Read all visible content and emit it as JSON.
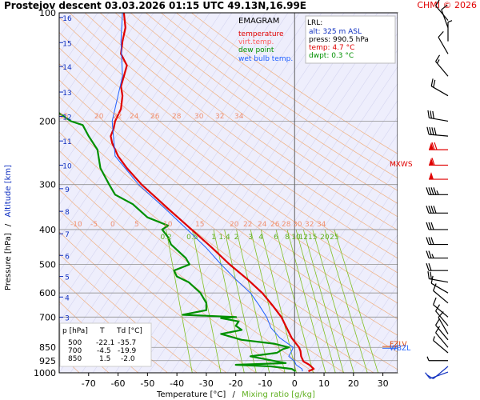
{
  "header": {
    "title": "Prostejov   descent   03.03.2026 01:15 UTC  49.13N,16.99E",
    "credit": "CHMI © 2026"
  },
  "legend": {
    "heading": "EMAGRAM",
    "items": [
      {
        "label": "temperature",
        "color": "#e00000"
      },
      {
        "label": "virt.temp.",
        "color": "#ff6060"
      },
      {
        "label": "dew point",
        "color": "#009000"
      },
      {
        "label": "wet bulb temp.",
        "color": "#2060ff"
      }
    ]
  },
  "lrl": {
    "heading": "LRL:",
    "lines": [
      {
        "text": "alt: 325 m ASL",
        "color": "#1030c0"
      },
      {
        "text": "press: 990.5 hPa",
        "color": "#000000"
      },
      {
        "text": "temp: 4.7 °C",
        "color": "#e00000"
      },
      {
        "text": "dwpt: 0.3 °C",
        "color": "#009000"
      }
    ]
  },
  "table": {
    "headers": [
      "p [hPa]",
      "T",
      "Td [°C]"
    ],
    "rows": [
      [
        "500",
        "-22.1",
        "-35.7"
      ],
      [
        "700",
        "-4.5",
        "-19.9"
      ],
      [
        "850",
        "1.5",
        "-2.0"
      ]
    ]
  },
  "axes": {
    "xlabel_temperature": "Temperature [°C]",
    "xlabel_separator": "/",
    "xlabel_mixing": "Mixing ratio [g/kg]",
    "ylabel_pressure": "Pressure [hPa]",
    "ylabel_separator": "/",
    "ylabel_altitude": "Altitude [km]"
  },
  "markers": {
    "mxws": "MXWS",
    "fzlv": "FZLV",
    "wbzl": "WBZL"
  },
  "colors": {
    "temperature": "#e00000",
    "dewpoint": "#009000",
    "wetbulb": "#2060ff",
    "dry_adiabat": "#f0b080",
    "mixing_ratio": "#80c020",
    "isotherm": "#c8c8e8",
    "background": "#eeeefc",
    "altitude_label": "#1030c0"
  },
  "chart_data": {
    "type": "line",
    "xlim": [
      -80,
      35
    ],
    "ylim": [
      1000,
      100
    ],
    "y_scale": "log",
    "x_ticks": [
      -70,
      -60,
      -50,
      -40,
      -30,
      -20,
      -10,
      0,
      10,
      20,
      30
    ],
    "pressure_ticks": [
      100,
      200,
      300,
      400,
      500,
      600,
      700,
      850,
      925,
      1000
    ],
    "altitude_ticks_km": [
      {
        "km": "1",
        "p": 900
      },
      {
        "km": "2",
        "p": 795
      },
      {
        "km": "3",
        "p": 701
      },
      {
        "km": "4",
        "p": 616
      },
      {
        "km": "5",
        "p": 540
      },
      {
        "km": "6",
        "p": 472
      },
      {
        "km": "7",
        "p": 411
      },
      {
        "km": "8",
        "p": 356
      },
      {
        "km": "9",
        "p": 308
      },
      {
        "km": "10",
        "p": 265
      },
      {
        "km": "11",
        "p": 227
      },
      {
        "km": "12",
        "p": 194
      },
      {
        "km": "13",
        "p": 166
      },
      {
        "km": "14",
        "p": 141
      },
      {
        "km": "15",
        "p": 121
      },
      {
        "km": "16",
        "p": 103
      }
    ],
    "mixing_ratio_labels": [
      "0.2",
      "0.5",
      "1",
      "1.4",
      "2",
      "3",
      "4",
      "6",
      "8",
      "10",
      "12",
      "15",
      "20",
      "25"
    ],
    "mixing_ratio_values": [
      0.2,
      0.5,
      1,
      1.4,
      2,
      3,
      4,
      6,
      8,
      10,
      12,
      15,
      20,
      25
    ],
    "theta_labels_upper": [
      "15",
      "20",
      "22",
      "24",
      "26",
      "28",
      "30",
      "32",
      "34"
    ],
    "theta_labels_lower": [
      "-10",
      "-5",
      "0",
      "5",
      "10",
      "15",
      "20",
      "22",
      "24",
      "26",
      "28",
      "30",
      "32",
      "34"
    ],
    "series": [
      {
        "name": "temperature",
        "points": [
          [
            990.5,
            4.7
          ],
          [
            975,
            6.5
          ],
          [
            950,
            5.0
          ],
          [
            930,
            3.0
          ],
          [
            900,
            2.2
          ],
          [
            870,
            2.0
          ],
          [
            850,
            1.5
          ],
          [
            800,
            -1.0
          ],
          [
            750,
            -2.7
          ],
          [
            700,
            -4.5
          ],
          [
            650,
            -7.5
          ],
          [
            600,
            -11.0
          ],
          [
            550,
            -16.0
          ],
          [
            500,
            -22.1
          ],
          [
            450,
            -28.0
          ],
          [
            400,
            -35.0
          ],
          [
            350,
            -43.0
          ],
          [
            300,
            -52.0
          ],
          [
            270,
            -57.0
          ],
          [
            250,
            -60.0
          ],
          [
            230,
            -62.0
          ],
          [
            220,
            -62.5
          ],
          [
            210,
            -61.5
          ],
          [
            200,
            -61.0
          ],
          [
            185,
            -59.0
          ],
          [
            170,
            -58.5
          ],
          [
            160,
            -59.0
          ],
          [
            150,
            -58.0
          ],
          [
            140,
            -57.0
          ],
          [
            130,
            -59.0
          ],
          [
            120,
            -58.5
          ],
          [
            110,
            -57.5
          ],
          [
            100,
            -58.0
          ]
        ]
      },
      {
        "name": "dew point",
        "points": [
          [
            990.5,
            0.3
          ],
          [
            975,
            -1.0
          ],
          [
            960,
            -8.0
          ],
          [
            950,
            -20.0
          ],
          [
            940,
            -3.0
          ],
          [
            930,
            -6.0
          ],
          [
            900,
            -15.0
          ],
          [
            880,
            -6.0
          ],
          [
            860,
            -4.0
          ],
          [
            850,
            -2.0
          ],
          [
            830,
            -7.0
          ],
          [
            810,
            -18.0
          ],
          [
            780,
            -25.0
          ],
          [
            760,
            -18.0
          ],
          [
            740,
            -20.0
          ],
          [
            720,
            -19.0
          ],
          [
            705,
            -25.0
          ],
          [
            700,
            -19.9
          ],
          [
            690,
            -38.0
          ],
          [
            670,
            -30.0
          ],
          [
            640,
            -30.0
          ],
          [
            600,
            -32.0
          ],
          [
            560,
            -36.0
          ],
          [
            540,
            -40.0
          ],
          [
            520,
            -41.0
          ],
          [
            500,
            -35.7
          ],
          [
            480,
            -37.0
          ],
          [
            440,
            -42.0
          ],
          [
            420,
            -43.0
          ],
          [
            400,
            -45.0
          ],
          [
            390,
            -43.0
          ],
          [
            370,
            -50.0
          ],
          [
            340,
            -55.0
          ],
          [
            320,
            -61.0
          ],
          [
            300,
            -63.0
          ],
          [
            270,
            -66.0
          ],
          [
            240,
            -67.0
          ],
          [
            220,
            -70.0
          ],
          [
            205,
            -72.0
          ],
          [
            200,
            -76.0
          ],
          [
            190,
            -80.0
          ]
        ]
      },
      {
        "name": "wet bulb temp.",
        "points": [
          [
            990.5,
            2.7
          ],
          [
            975,
            2.5
          ],
          [
            950,
            0.5
          ],
          [
            930,
            0.0
          ],
          [
            900,
            -2.0
          ],
          [
            870,
            -1.0
          ],
          [
            850,
            -0.5
          ],
          [
            800,
            -5.0
          ],
          [
            750,
            -8.0
          ],
          [
            700,
            -9.5
          ],
          [
            650,
            -12.0
          ],
          [
            600,
            -15.0
          ],
          [
            550,
            -20.0
          ],
          [
            500,
            -25.0
          ],
          [
            450,
            -30.0
          ],
          [
            400,
            -36.5
          ],
          [
            350,
            -44.0
          ],
          [
            300,
            -53.0
          ],
          [
            250,
            -61.0
          ],
          [
            200,
            -62.0
          ],
          [
            150,
            -58.5
          ],
          [
            120,
            -59.0
          ],
          [
            100,
            -58.5
          ]
        ]
      }
    ],
    "wind_barbs": [
      {
        "p": 995,
        "dir": 250,
        "kt": 10
      },
      {
        "p": 960,
        "dir": 230,
        "kt": 10
      },
      {
        "p": 925,
        "dir": 270,
        "kt": 5
      },
      {
        "p": 880,
        "dir": 310,
        "kt": 5
      },
      {
        "p": 850,
        "dir": 320,
        "kt": 10
      },
      {
        "p": 810,
        "dir": 320,
        "kt": 10
      },
      {
        "p": 780,
        "dir": 330,
        "kt": 10
      },
      {
        "p": 740,
        "dir": 320,
        "kt": 10
      },
      {
        "p": 700,
        "dir": 310,
        "kt": 10
      },
      {
        "p": 640,
        "dir": 310,
        "kt": 10
      },
      {
        "p": 600,
        "dir": 300,
        "kt": 10
      },
      {
        "p": 560,
        "dir": 280,
        "kt": 20
      },
      {
        "p": 520,
        "dir": 270,
        "kt": 20
      },
      {
        "p": 480,
        "dir": 270,
        "kt": 25
      },
      {
        "p": 440,
        "dir": 270,
        "kt": 30
      },
      {
        "p": 400,
        "dir": 270,
        "kt": 30
      },
      {
        "p": 360,
        "dir": 270,
        "kt": 40
      },
      {
        "p": 320,
        "dir": 270,
        "kt": 45
      },
      {
        "p": 290,
        "dir": 270,
        "kt": 50
      },
      {
        "p": 265,
        "dir": 270,
        "kt": 60
      },
      {
        "p": 240,
        "dir": 270,
        "kt": 70
      },
      {
        "p": 220,
        "dir": 275,
        "kt": 40
      },
      {
        "p": 200,
        "dir": 280,
        "kt": 30
      },
      {
        "p": 170,
        "dir": 300,
        "kt": 20
      },
      {
        "p": 150,
        "dir": 320,
        "kt": 15
      },
      {
        "p": 130,
        "dir": 330,
        "kt": 10
      },
      {
        "p": 120,
        "dir": 0,
        "kt": 5
      },
      {
        "p": 110,
        "dir": 340,
        "kt": 10
      },
      {
        "p": 105,
        "dir": 320,
        "kt": 10
      }
    ],
    "levels": {
      "mxws_p": 263,
      "fzlv_p": 845,
      "wbzl_p": 855
    }
  }
}
